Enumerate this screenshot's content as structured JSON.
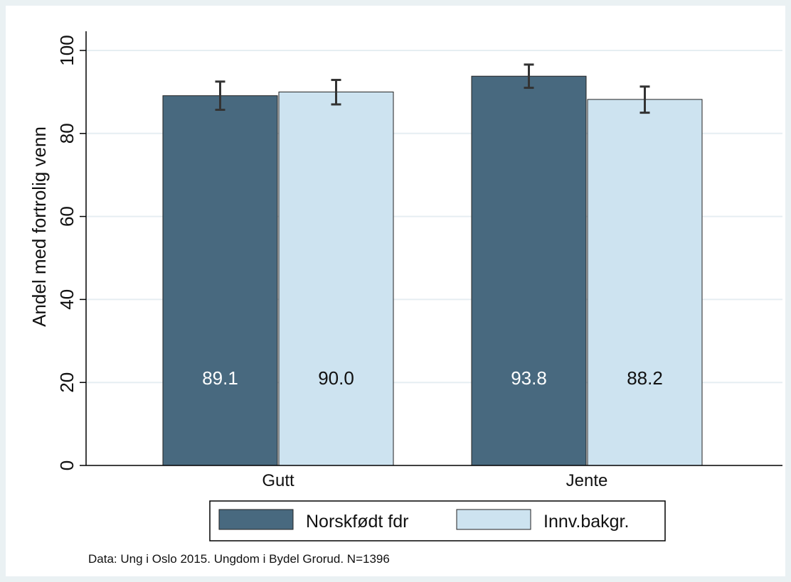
{
  "chart_data": {
    "type": "bar",
    "ylabel": "Andel med fortrolig venn",
    "xlabel": "",
    "ylim": [
      0,
      100
    ],
    "yticks": [
      0,
      20,
      40,
      60,
      80,
      100
    ],
    "grid": true,
    "categories": [
      "Gutt",
      "Jente"
    ],
    "series": [
      {
        "name": "Norskfødt fdr",
        "color": "#48697f",
        "label_color": "#ffffff",
        "values": [
          89.1,
          93.8
        ],
        "value_labels": [
          "89.1",
          "93.8"
        ],
        "ci_low": [
          85.7,
          91.0
        ],
        "ci_high": [
          92.5,
          96.6
        ]
      },
      {
        "name": "Innv.bakgr.",
        "color": "#cde3f0",
        "label_color": "#111111",
        "values": [
          90.0,
          88.2
        ],
        "value_labels": [
          "90.0",
          "88.2"
        ],
        "ci_low": [
          87.0,
          85.0
        ],
        "ci_high": [
          92.9,
          91.3
        ]
      }
    ],
    "legend_position": "bottom",
    "note": "Data: Ung i Oslo 2015. Ungdom i Bydel Grorud. N=1396"
  }
}
